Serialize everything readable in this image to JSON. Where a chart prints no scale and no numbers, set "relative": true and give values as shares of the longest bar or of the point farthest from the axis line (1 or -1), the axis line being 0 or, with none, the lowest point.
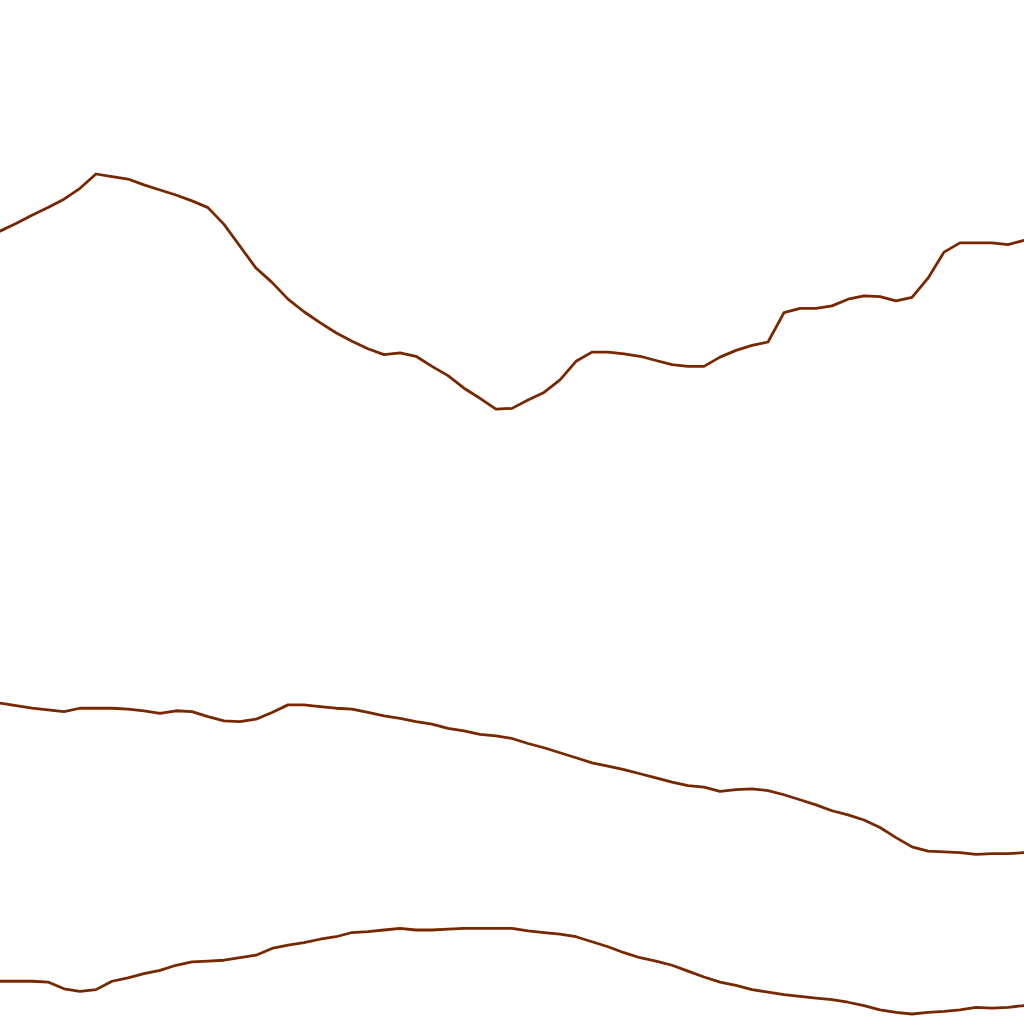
{
  "chart_data": {
    "type": "line",
    "relative": true,
    "line_style": "solid",
    "categories": [
      null,
      null,
      null,
      null,
      null,
      null,
      null,
      null,
      null,
      null,
      null,
      null,
      null,
      null,
      null,
      null,
      null,
      null,
      null,
      null,
      null,
      null,
      null,
      null,
      null,
      null,
      null,
      null,
      null,
      null,
      null,
      null,
      null,
      null,
      null,
      null,
      null,
      null,
      null,
      null,
      null,
      null,
      null,
      null,
      null,
      null,
      null,
      null,
      null,
      null,
      null,
      null,
      null,
      null,
      null,
      null,
      null,
      null,
      null,
      null,
      null,
      null,
      null,
      null,
      null
    ],
    "series": [
      {
        "color": "#782800",
        "values": [
          0.932,
          0.941,
          0.951,
          0.96,
          0.97,
          0.983,
          1.0,
          0.997,
          0.994,
          0.987,
          0.981,
          0.975,
          0.968,
          0.96,
          0.94,
          0.914,
          0.888,
          0.871,
          0.851,
          0.836,
          0.823,
          0.811,
          0.801,
          0.792,
          0.785,
          0.787,
          0.783,
          0.771,
          0.76,
          0.745,
          0.733,
          0.72,
          0.721,
          0.731,
          0.74,
          0.755,
          0.777,
          0.788,
          0.788,
          0.786,
          0.783,
          0.778,
          0.773,
          0.771,
          0.771,
          0.782,
          0.79,
          0.796,
          0.8,
          0.835,
          0.84,
          0.84,
          0.843,
          0.851,
          0.855,
          0.854,
          0.849,
          0.853,
          0.876,
          0.907,
          0.918,
          0.918,
          0.918,
          0.916,
          0.921
        ]
      },
      {
        "color": "#782800",
        "values": [
          0.37,
          0.367,
          0.364,
          0.362,
          0.36,
          0.364,
          0.364,
          0.364,
          0.363,
          0.361,
          0.358,
          0.361,
          0.36,
          0.354,
          0.349,
          0.348,
          0.351,
          0.359,
          0.368,
          0.368,
          0.366,
          0.364,
          0.363,
          0.359,
          0.355,
          0.352,
          0.348,
          0.345,
          0.34,
          0.337,
          0.333,
          0.331,
          0.328,
          0.322,
          0.317,
          0.311,
          0.305,
          0.299,
          0.295,
          0.291,
          0.286,
          0.281,
          0.276,
          0.272,
          0.27,
          0.265,
          0.267,
          0.268,
          0.266,
          0.261,
          0.255,
          0.249,
          0.242,
          0.237,
          0.231,
          0.222,
          0.21,
          0.199,
          0.194,
          0.193,
          0.192,
          0.19,
          0.191,
          0.191,
          0.192
        ]
      },
      {
        "color": "#782800",
        "values": [
          0.039,
          0.039,
          0.039,
          0.038,
          0.03,
          0.027,
          0.029,
          0.039,
          0.043,
          0.048,
          0.052,
          0.058,
          0.062,
          0.063,
          0.064,
          0.067,
          0.07,
          0.078,
          0.082,
          0.085,
          0.089,
          0.092,
          0.097,
          0.098,
          0.1,
          0.102,
          0.1,
          0.1,
          0.101,
          0.102,
          0.102,
          0.102,
          0.102,
          0.099,
          0.097,
          0.095,
          0.092,
          0.086,
          0.08,
          0.073,
          0.067,
          0.063,
          0.058,
          0.051,
          0.044,
          0.038,
          0.034,
          0.029,
          0.026,
          0.023,
          0.021,
          0.019,
          0.017,
          0.014,
          0.01,
          0.005,
          0.002,
          0.0,
          0.002,
          0.003,
          0.005,
          0.008,
          0.007,
          0.008,
          0.01
        ]
      }
    ]
  }
}
